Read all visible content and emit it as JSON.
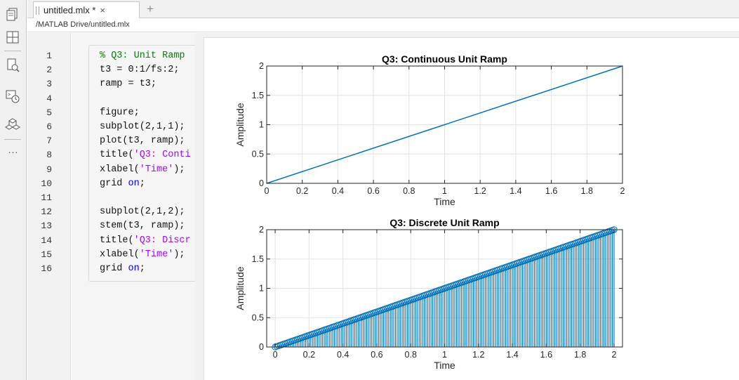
{
  "rail": {
    "icons": [
      "files-icon",
      "layout-icon",
      "search-document-icon",
      "command-history-icon",
      "add-ons-icon"
    ],
    "more": "..."
  },
  "tab": {
    "label": "untitled.mlx *",
    "close": "×",
    "add": "+"
  },
  "path": "/MATLAB Drive/untitled.mlx",
  "editor": {
    "line_numbers": [
      "1",
      "2",
      "3",
      "4",
      "5",
      "6",
      "7",
      "8",
      "9",
      "10",
      "11",
      "12",
      "13",
      "14",
      "15",
      "16"
    ],
    "lines": [
      [
        {
          "t": "% Q3: Unit Ramp",
          "c": "cm"
        }
      ],
      [
        {
          "t": "t3 = 0:1/fs:2;",
          "c": ""
        }
      ],
      [
        {
          "t": "ramp = t3;",
          "c": ""
        }
      ],
      [],
      [
        {
          "t": "figure;",
          "c": ""
        }
      ],
      [
        {
          "t": "subplot(2,1,1);",
          "c": ""
        }
      ],
      [
        {
          "t": "plot(t3, ramp);",
          "c": ""
        }
      ],
      [
        {
          "t": "title(",
          "c": ""
        },
        {
          "t": "'Q3: Conti",
          "c": "st"
        }
      ],
      [
        {
          "t": "xlabel(",
          "c": ""
        },
        {
          "t": "'Time'",
          "c": "st"
        },
        {
          "t": ");",
          "c": ""
        }
      ],
      [
        {
          "t": "grid ",
          "c": ""
        },
        {
          "t": "on",
          "c": "kw"
        },
        {
          "t": ";",
          "c": ""
        }
      ],
      [],
      [
        {
          "t": "subplot(2,1,2);",
          "c": ""
        }
      ],
      [
        {
          "t": "stem(t3, ramp);",
          "c": ""
        }
      ],
      [
        {
          "t": "title(",
          "c": ""
        },
        {
          "t": "'Q3: Discr",
          "c": "st"
        }
      ],
      [
        {
          "t": "xlabel(",
          "c": ""
        },
        {
          "t": "'Time'",
          "c": "st"
        },
        {
          "t": ");",
          "c": ""
        }
      ],
      [
        {
          "t": "grid ",
          "c": ""
        },
        {
          "t": "on",
          "c": "kw"
        },
        {
          "t": ";",
          "c": ""
        }
      ]
    ]
  },
  "colors": {
    "series": "#0072BD",
    "comment": "#028009",
    "string": "#a709f5",
    "keyword": "#0000ff"
  },
  "chart_data": [
    {
      "type": "line",
      "title": "Q3: Continuous Unit Ramp",
      "xlabel": "Time",
      "ylabel": "Amplitude",
      "xlim": [
        0,
        2
      ],
      "ylim": [
        0,
        2
      ],
      "xticks": [
        "0",
        "0.2",
        "0.4",
        "0.6",
        "0.8",
        "1",
        "1.2",
        "1.4",
        "1.6",
        "1.8",
        "2"
      ],
      "yticks": [
        "0",
        "0.5",
        "1",
        "1.5",
        "2"
      ],
      "grid": true,
      "series": [
        {
          "x": [
            0,
            2
          ],
          "y": [
            0,
            2
          ]
        }
      ]
    },
    {
      "type": "stem",
      "title": "Q3: Discrete Unit Ramp",
      "xlabel": "Time",
      "ylabel": "Amplitude",
      "xlim": [
        -0.05,
        2.05
      ],
      "ylim": [
        0,
        2
      ],
      "xticks": [
        "0",
        "0.2",
        "0.4",
        "0.6",
        "0.8",
        "1",
        "1.2",
        "1.4",
        "1.6",
        "1.8",
        "2"
      ],
      "yticks": [
        "0",
        "0.5",
        "1",
        "1.5",
        "2"
      ],
      "grid": true,
      "series": [
        {
          "x_start": 0,
          "x_end": 2,
          "step": 0.01,
          "y_equals_x": true
        }
      ]
    }
  ]
}
